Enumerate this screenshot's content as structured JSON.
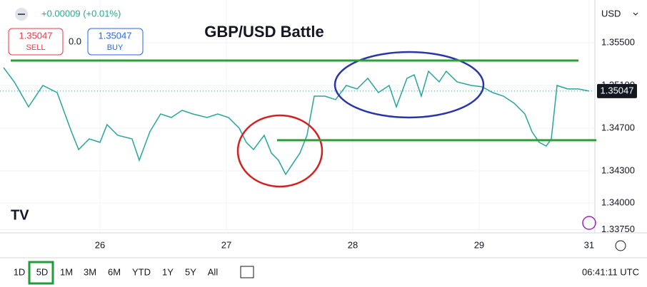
{
  "ui": {
    "change": "+0.00009 (+0.01%)",
    "sell_price": "1.35047",
    "sell": "SELL",
    "spread": "0.0",
    "buy_price": "1.35047",
    "buy": "BUY",
    "currency": "USD",
    "ranges": [
      "1D",
      "5D",
      "1M",
      "3M",
      "6M",
      "YTD",
      "1Y",
      "5Y",
      "All"
    ],
    "clock": "06:41:11 UTC"
  },
  "chart_data": {
    "type": "line",
    "title": "GBP/USD Battle",
    "color": "#26a69a",
    "x": [
      -0.763,
      -0.678,
      -0.565,
      -0.452,
      -0.339,
      -0.226,
      -0.169,
      -0.085,
      0,
      0.056,
      0.141,
      0.254,
      0.311,
      0.395,
      0.48,
      0.565,
      0.65,
      0.734,
      0.847,
      0.932,
      1.017,
      1.102,
      1.158,
      1.215,
      1.299,
      1.356,
      1.412,
      1.469,
      1.525,
      1.582,
      1.638,
      1.695,
      1.78,
      1.864,
      1.949,
      2.034,
      2.119,
      2.203,
      2.288,
      2.345,
      2.429,
      2.486,
      2.542,
      2.599,
      2.684,
      2.74,
      2.825,
      2.938,
      3.023,
      3.107,
      3.192,
      3.277,
      3.362,
      3.418,
      3.475,
      3.531,
      3.571,
      3.616,
      3.701,
      3.785,
      3.87
    ],
    "values": [
      1.35267,
      1.35133,
      1.349,
      1.351,
      1.35033,
      1.34667,
      1.345,
      1.346,
      1.34567,
      1.34733,
      1.34633,
      1.346,
      1.344,
      1.34667,
      1.34833,
      1.348,
      1.34867,
      1.34833,
      1.348,
      1.34833,
      1.348,
      1.347,
      1.34567,
      1.345,
      1.34633,
      1.34467,
      1.344,
      1.34267,
      1.34367,
      1.34467,
      1.34633,
      1.35,
      1.35,
      1.34967,
      1.351,
      1.35067,
      1.35167,
      1.35033,
      1.351,
      1.349,
      1.35167,
      1.352,
      1.35,
      1.35233,
      1.35133,
      1.35233,
      1.35133,
      1.351,
      1.35087,
      1.35033,
      1.35,
      1.34933,
      1.34833,
      1.34667,
      1.34567,
      1.34533,
      1.346,
      1.351,
      1.35067,
      1.35067,
      1.35047
    ],
    "last": 1.35047,
    "last_label": "1.35047",
    "levels": [
      {
        "value": 1.35333,
        "color": "#2e9e3a"
      },
      {
        "value": 1.34587,
        "color": "#2e9e3a"
      }
    ],
    "ylim": [
      1.33733,
      1.359
    ],
    "yticks": [
      {
        "value": 1.355,
        "label": "1.35500"
      },
      {
        "value": 1.351,
        "label": "1.35100"
      },
      {
        "value": 1.347,
        "label": "1.34700"
      },
      {
        "value": 1.343,
        "label": "1.34300"
      },
      {
        "value": 1.34,
        "label": "1.34000"
      },
      {
        "value": 1.3375,
        "label": "1.33750"
      }
    ],
    "xlim": [
      -0.791,
      3.91
    ],
    "xticks": [
      {
        "value": 0,
        "label": "26"
      },
      {
        "value": 1,
        "label": "27"
      },
      {
        "value": 2,
        "label": "28"
      },
      {
        "value": 3,
        "label": "29"
      },
      {
        "value": 3.87,
        "label": "31"
      }
    ],
    "grid": true
  }
}
